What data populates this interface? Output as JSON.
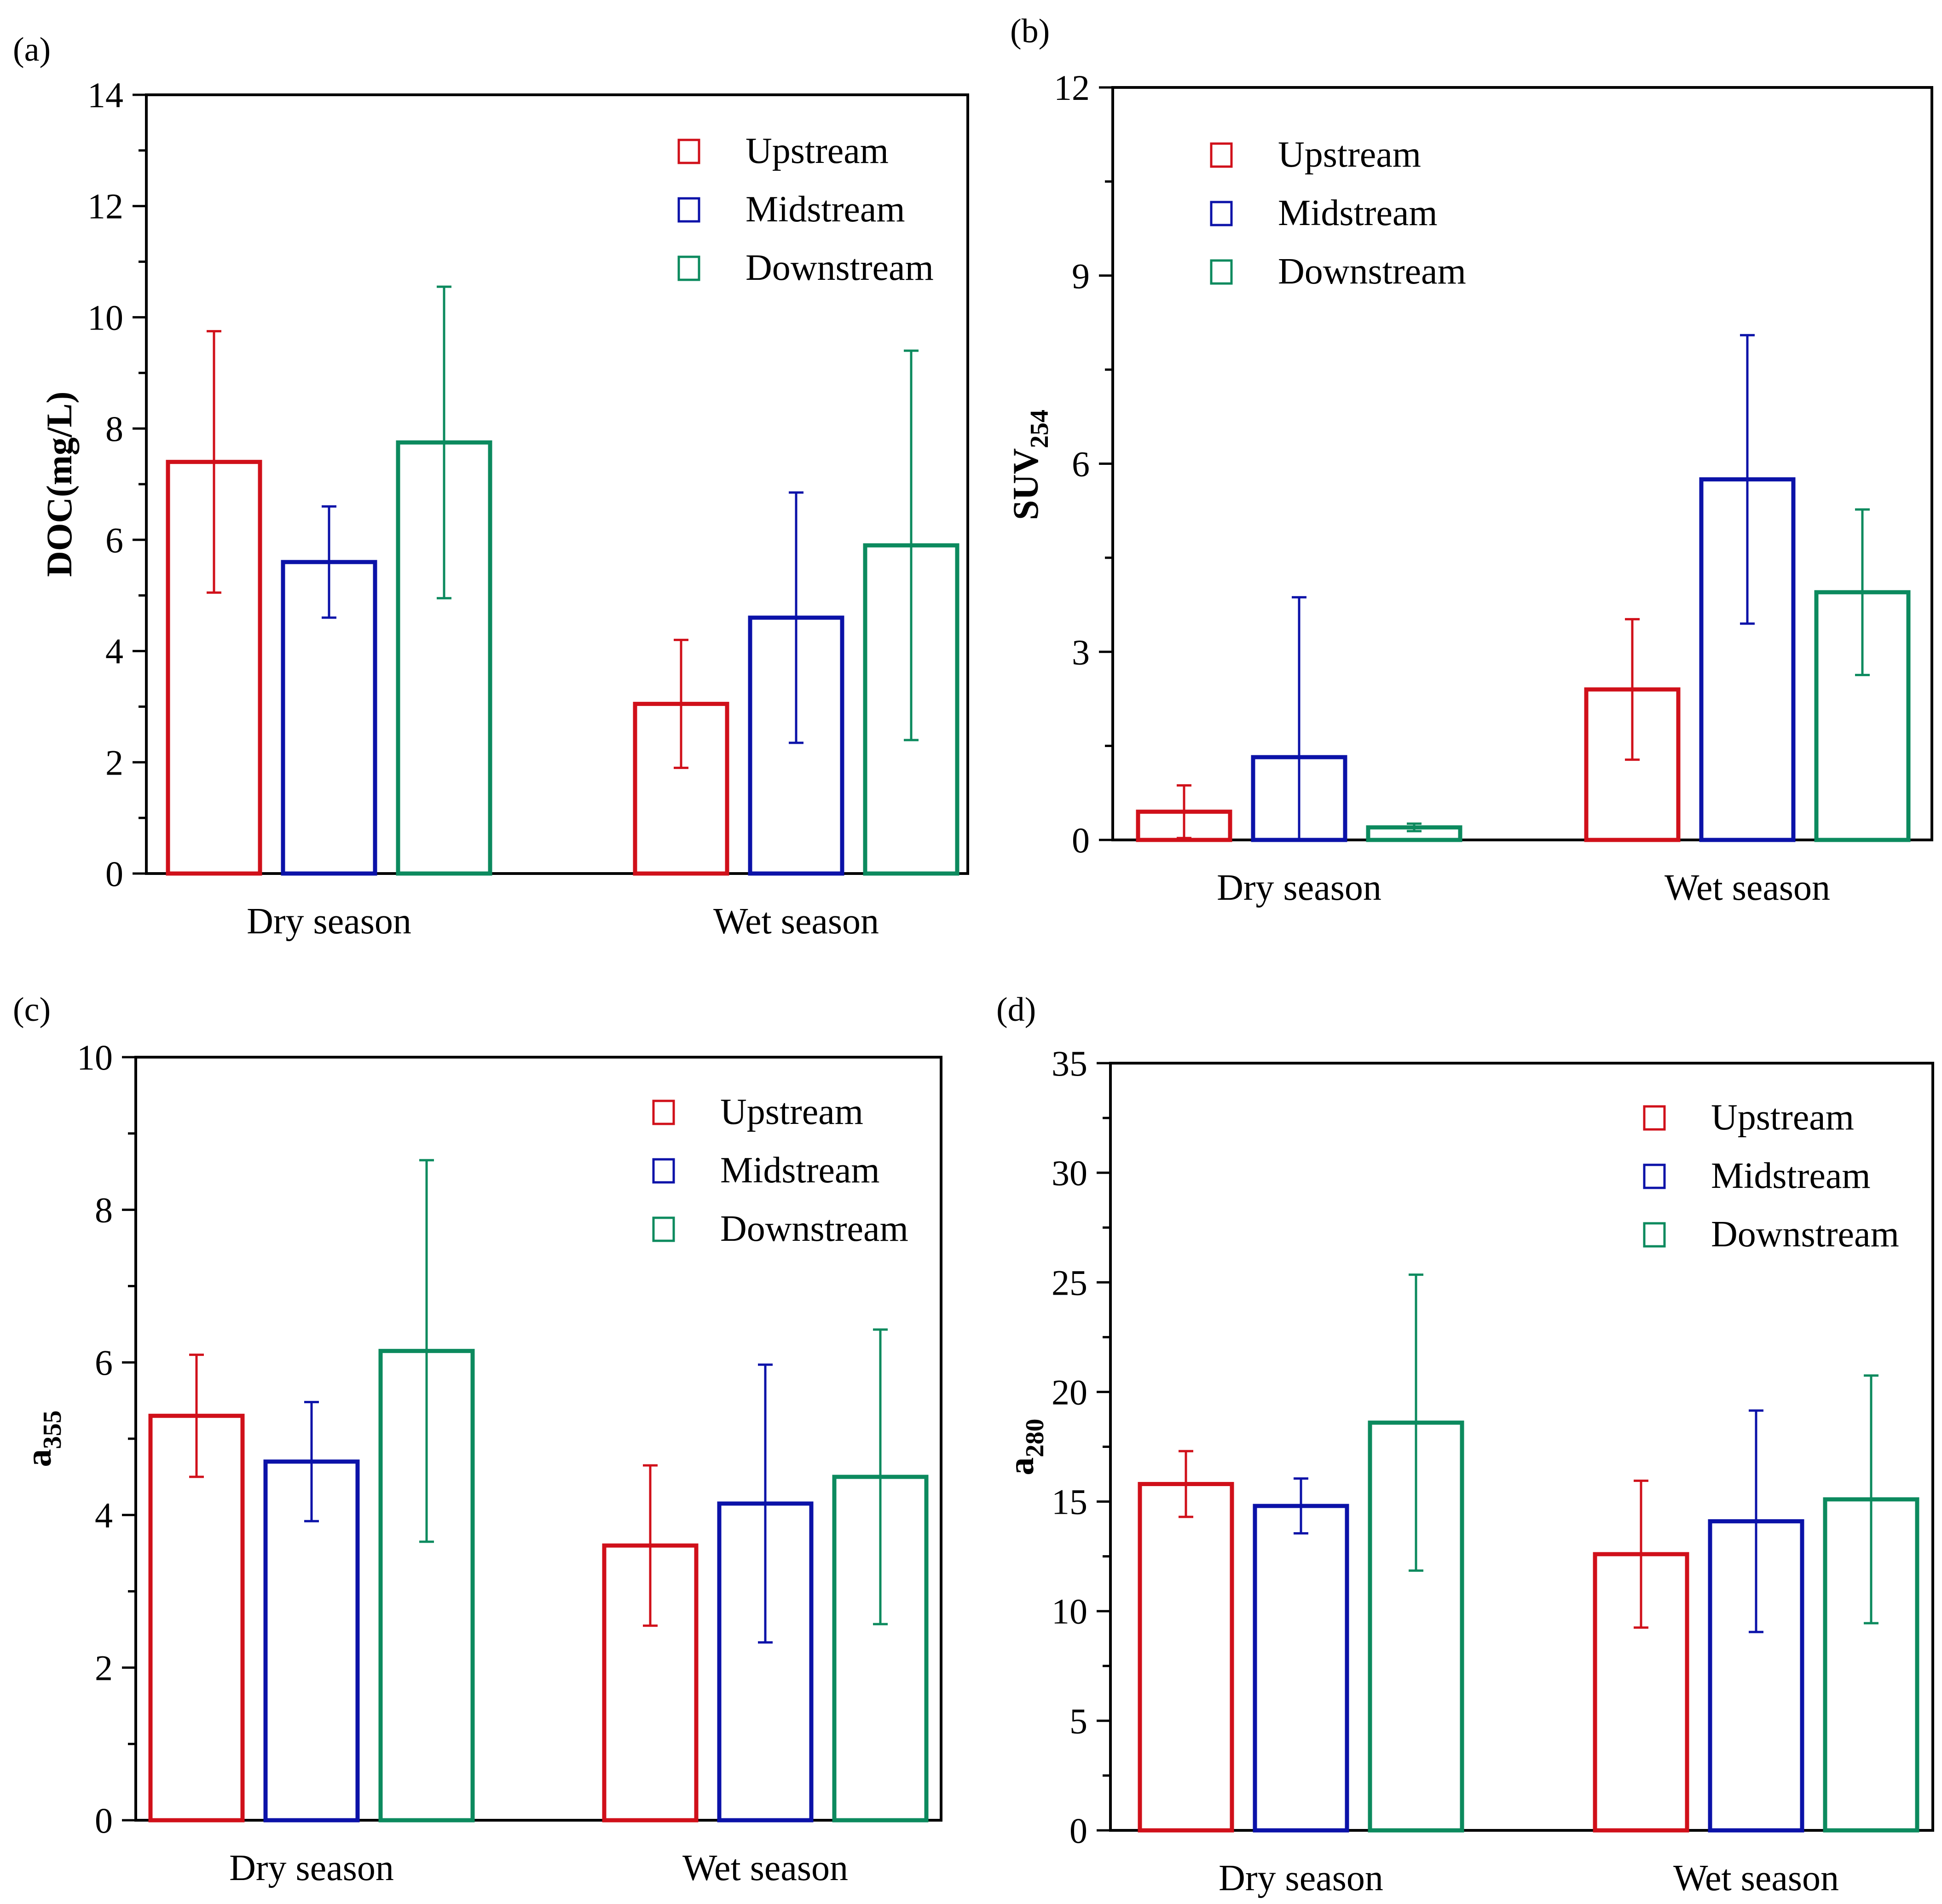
{
  "colors": {
    "Upstream": "#d0101a",
    "Midstream": "#0b12a8",
    "Downstream": "#0c8a5e",
    "axis": "#000000"
  },
  "chart_data": [
    {
      "type": "bar",
      "panel_label": "(a)",
      "title": "",
      "xlabel": "",
      "ylabel": "DOC(mg/L)",
      "ylabel_main": "DOC(mg/L)",
      "ylabel_sub": "",
      "ylim": [
        0,
        14
      ],
      "yticks": [
        0,
        2,
        4,
        6,
        8,
        10,
        12,
        14
      ],
      "categories": [
        "Dry season",
        "Wet season"
      ],
      "legend": "top-right",
      "series": [
        {
          "name": "Upstream",
          "values": [
            7.4,
            3.05
          ],
          "errors": [
            2.35,
            1.15
          ]
        },
        {
          "name": "Midstream",
          "values": [
            5.6,
            4.6
          ],
          "errors": [
            1.0,
            2.25
          ]
        },
        {
          "name": "Downstream",
          "values": [
            7.75,
            5.9
          ],
          "errors": [
            2.8,
            3.5
          ]
        }
      ]
    },
    {
      "type": "bar",
      "panel_label": "(b)",
      "title": "",
      "xlabel": "",
      "ylabel": "SUV254",
      "ylabel_main": "SUV",
      "ylabel_sub": "254",
      "ylim": [
        0,
        12
      ],
      "yticks": [
        0,
        3,
        6,
        9,
        12
      ],
      "categories": [
        "Dry season",
        "Wet season"
      ],
      "legend": "top-left",
      "series": [
        {
          "name": "Upstream",
          "values": [
            0.45,
            2.4
          ],
          "errors": [
            0.42,
            1.12
          ]
        },
        {
          "name": "Midstream",
          "values": [
            1.32,
            5.75
          ],
          "errors": [
            2.55,
            2.3
          ]
        },
        {
          "name": "Downstream",
          "values": [
            0.2,
            3.95
          ],
          "errors": [
            0.06,
            1.32
          ]
        }
      ]
    },
    {
      "type": "bar",
      "panel_label": "(c)",
      "title": "",
      "xlabel": "",
      "ylabel": "a355",
      "ylabel_main": "a",
      "ylabel_sub": "355",
      "ylim": [
        0,
        10
      ],
      "yticks": [
        0,
        2,
        4,
        6,
        8,
        10
      ],
      "categories": [
        "Dry season",
        "Wet season"
      ],
      "legend": "top-right",
      "series": [
        {
          "name": "Upstream",
          "values": [
            5.3,
            3.6
          ],
          "errors": [
            0.8,
            1.05
          ]
        },
        {
          "name": "Midstream",
          "values": [
            4.7,
            4.15
          ],
          "errors": [
            0.78,
            1.82
          ]
        },
        {
          "name": "Downstream",
          "values": [
            6.15,
            4.5
          ],
          "errors": [
            2.5,
            1.93
          ]
        }
      ]
    },
    {
      "type": "bar",
      "panel_label": "(d)",
      "title": "",
      "xlabel": "",
      "ylabel": "a280",
      "ylabel_main": "a",
      "ylabel_sub": "280",
      "ylim": [
        0,
        35
      ],
      "yticks": [
        0,
        5,
        10,
        15,
        20,
        25,
        30,
        35
      ],
      "categories": [
        "Dry season",
        "Wet season"
      ],
      "legend": "top-right",
      "series": [
        {
          "name": "Upstream",
          "values": [
            15.8,
            12.6
          ],
          "errors": [
            1.5,
            3.35
          ]
        },
        {
          "name": "Midstream",
          "values": [
            14.8,
            14.1
          ],
          "errors": [
            1.25,
            5.05
          ]
        },
        {
          "name": "Downstream",
          "values": [
            18.6,
            15.1
          ],
          "errors": [
            6.75,
            5.65
          ]
        }
      ]
    }
  ]
}
